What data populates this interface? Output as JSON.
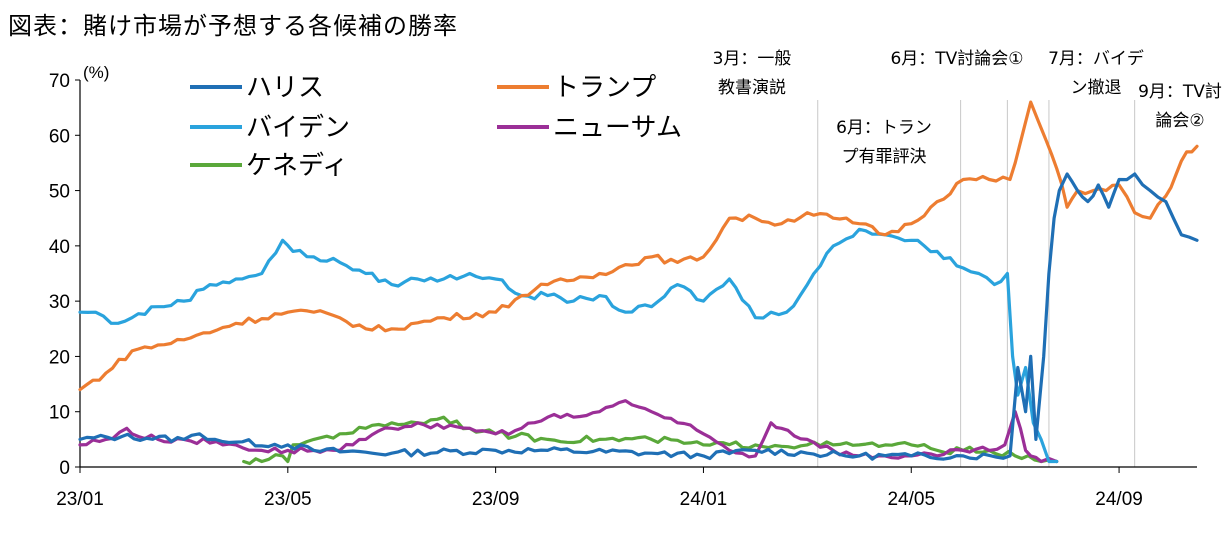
{
  "title": "図表：賭け市場が予想する各候補の勝率",
  "chart_data": {
    "type": "line",
    "ylabel": "(%)",
    "ylim": [
      0,
      70
    ],
    "yticks": [
      0,
      10,
      20,
      30,
      40,
      50,
      60,
      70
    ],
    "xlim": [
      0,
      21.5
    ],
    "xticks": [
      {
        "label": "23/01",
        "t": 0
      },
      {
        "label": "23/05",
        "t": 4
      },
      {
        "label": "23/09",
        "t": 8
      },
      {
        "label": "24/01",
        "t": 12
      },
      {
        "label": "24/05",
        "t": 16
      },
      {
        "label": "24/09",
        "t": 20
      }
    ],
    "annotations": [
      {
        "lines": [
          "3月：一般",
          "教書演説"
        ],
        "t": 14.2
      },
      {
        "lines": [
          "6月：トラン",
          "プ有罪評決"
        ],
        "t": 16.95
      },
      {
        "lines": [
          "6月：TV討論会①"
        ],
        "t": 17.85
      },
      {
        "lines": [
          "7月：バイデ",
          "ン撤退"
        ],
        "t": 18.65
      },
      {
        "lines": [
          "9月：TV討",
          "論会②"
        ],
        "t": 20.3
      }
    ],
    "series": [
      {
        "name": "ハリス",
        "color": "#1f6fb5",
        "x": [
          0,
          0.8,
          2,
          2.3,
          2.6,
          3,
          4,
          4.5,
          6,
          8,
          9,
          11,
          12,
          13,
          14,
          15,
          16,
          17,
          17.9,
          18.05,
          18.2,
          18.3,
          18.4,
          18.55,
          18.65,
          18.75,
          18.85,
          19,
          19.2,
          19.4,
          19.6,
          19.8,
          20,
          20.3,
          20.6,
          20.9,
          21.2,
          21.5
        ],
        "values": [
          5,
          5.5,
          5,
          6,
          5,
          4.5,
          4,
          3,
          2.5,
          3,
          3,
          2.5,
          2,
          3,
          2.5,
          2,
          2,
          2,
          2,
          18,
          10,
          20,
          5,
          20,
          35,
          45,
          50,
          53,
          50,
          48,
          51,
          47,
          52,
          53,
          50,
          48,
          42,
          41
        ]
      },
      {
        "name": "トランプ",
        "color": "#ed7d31",
        "x": [
          0,
          0.5,
          1,
          2,
          3,
          4,
          4.5,
          5,
          5.5,
          6,
          7,
          8,
          8.5,
          9,
          10,
          11,
          11.5,
          12,
          12.5,
          13,
          13.5,
          14,
          14.5,
          15,
          15.5,
          16,
          16.5,
          17,
          17.5,
          17.9,
          18,
          18.3,
          18.6,
          18.8,
          19,
          19.2,
          19.5,
          20,
          20.3,
          20.6,
          20.9,
          21.1,
          21.3,
          21.5
        ],
        "values": [
          14,
          17,
          21,
          23,
          26,
          28,
          28,
          27,
          25,
          25,
          27,
          28,
          31,
          33,
          35,
          38,
          37,
          38,
          45,
          45,
          44,
          46,
          45,
          44,
          42,
          44,
          48,
          52,
          52,
          52,
          55,
          66,
          59,
          54,
          47,
          50,
          50,
          51,
          46,
          45,
          49,
          53,
          57,
          58
        ]
      },
      {
        "name": "バイデン",
        "color": "#2aa3dd",
        "x": [
          0,
          0.3,
          0.6,
          1,
          1.5,
          2,
          2.5,
          3,
          3.5,
          3.9,
          4.1,
          4.5,
          5,
          5.5,
          6,
          6.5,
          7,
          7.5,
          8,
          8.5,
          9,
          9.5,
          10,
          10.5,
          11,
          11.5,
          12,
          12.5,
          13,
          13.3,
          13.6,
          14,
          14.5,
          15,
          15.5,
          16,
          16.5,
          17,
          17.3,
          17.6,
          17.85,
          17.95,
          18.05,
          18.2,
          18.35,
          18.5,
          18.65,
          18.8
        ],
        "values": [
          28,
          28,
          26,
          27,
          29,
          30,
          33,
          34,
          35,
          41,
          39,
          38,
          37,
          35,
          33,
          34,
          34,
          35,
          34,
          31,
          31,
          30,
          31,
          28,
          29,
          33,
          30,
          34,
          27,
          28,
          28,
          33,
          40,
          43,
          42,
          41,
          39,
          36,
          35,
          33,
          35,
          20,
          13,
          18,
          8,
          5,
          1,
          1
        ]
      },
      {
        "name": "ニューサム",
        "color": "#9b2f97",
        "x": [
          0,
          0.5,
          0.9,
          1,
          1.5,
          2,
          3,
          3.5,
          4,
          4.5,
          5,
          5.5,
          6,
          6.5,
          7,
          7.5,
          8,
          8.5,
          9,
          9.5,
          10,
          10.5,
          11,
          11.5,
          12,
          12.5,
          13,
          13.3,
          13.5,
          14,
          14.5,
          15,
          15.5,
          16,
          16.5,
          17,
          17.5,
          17.8,
          18,
          18.1,
          18.2,
          18.3,
          18.5,
          18.8
        ],
        "values": [
          4,
          5,
          7,
          6,
          5,
          5,
          4,
          3,
          3,
          3,
          3,
          5,
          7,
          8,
          7,
          7,
          6,
          7,
          9,
          9,
          10,
          12,
          10,
          8,
          6,
          3,
          2,
          8,
          7,
          5,
          3,
          2,
          2,
          2,
          2,
          3,
          3,
          4,
          10,
          7,
          3,
          2,
          1,
          1
        ]
      },
      {
        "name": "ケネディ",
        "color": "#5aa83a",
        "x": [
          3.15,
          3.5,
          3.9,
          4.0,
          4.1,
          4.5,
          5,
          5.5,
          6,
          6.5,
          7,
          7.5,
          8,
          9,
          10,
          11,
          12,
          13,
          14,
          14.5,
          15,
          15.5,
          16,
          16.5,
          17,
          17.5,
          18,
          18.5,
          18.8
        ],
        "values": [
          1,
          1,
          2,
          1,
          4,
          5,
          6,
          7,
          8,
          8,
          9,
          7,
          6,
          5,
          5,
          5,
          4,
          4,
          4,
          4,
          4,
          4,
          4,
          3,
          3,
          3,
          2,
          1,
          1
        ]
      }
    ]
  }
}
